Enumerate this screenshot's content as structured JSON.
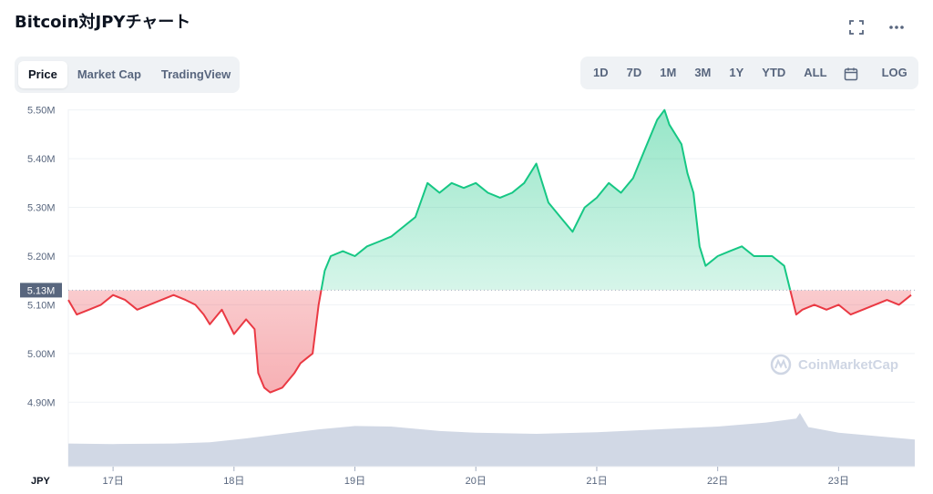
{
  "page": {
    "title": "Bitcoin対JPYチャート",
    "icons": [
      "fullscreen-icon",
      "more-icon"
    ]
  },
  "view_tabs": [
    {
      "label": "Price",
      "active": true
    },
    {
      "label": "Market Cap",
      "active": false
    },
    {
      "label": "TradingView",
      "active": false
    }
  ],
  "range_tabs": [
    "1D",
    "7D",
    "1M",
    "3M",
    "1Y",
    "YTD",
    "ALL"
  ],
  "log_label": "LOG",
  "watermark": "CoinMarketCap",
  "colors": {
    "up": "#16c784",
    "down": "#ea3943",
    "volume": "#cfd6e4",
    "grid": "#eff2f5",
    "text": "#58667e"
  },
  "chart_data": {
    "type": "line",
    "currency_label": "JPY",
    "ylim": [
      4.85,
      5.52
    ],
    "y_ticks": [
      "5.50M",
      "5.40M",
      "5.30M",
      "5.20M",
      "5.10M",
      "5.00M",
      "4.90M"
    ],
    "y_tick_values": [
      5.5,
      5.4,
      5.3,
      5.2,
      5.1,
      5.0,
      4.9
    ],
    "x_ticks": [
      "17日",
      "18日",
      "19日",
      "20日",
      "21日",
      "22日",
      "23日"
    ],
    "x_tick_values": [
      17,
      18,
      19,
      20,
      21,
      22,
      23
    ],
    "xlim": [
      16.63,
      23.63
    ],
    "baseline": {
      "value": 5.13,
      "label": "5.13M"
    },
    "price_series": {
      "name": "",
      "x": [
        16.63,
        16.7,
        16.8,
        16.9,
        17.0,
        17.1,
        17.2,
        17.3,
        17.4,
        17.5,
        17.6,
        17.68,
        17.75,
        17.8,
        17.9,
        18.0,
        18.1,
        18.17,
        18.2,
        18.25,
        18.3,
        18.4,
        18.5,
        18.55,
        18.6,
        18.65,
        18.7,
        18.75,
        18.8,
        18.9,
        19.0,
        19.1,
        19.2,
        19.3,
        19.4,
        19.5,
        19.6,
        19.7,
        19.8,
        19.9,
        20.0,
        20.1,
        20.2,
        20.3,
        20.4,
        20.5,
        20.55,
        20.6,
        20.7,
        20.8,
        20.9,
        21.0,
        21.1,
        21.2,
        21.3,
        21.4,
        21.5,
        21.56,
        21.6,
        21.7,
        21.75,
        21.8,
        21.85,
        21.9,
        22.0,
        22.1,
        22.2,
        22.3,
        22.45,
        22.55,
        22.6,
        22.65,
        22.7,
        22.8,
        22.9,
        23.0,
        23.1,
        23.2,
        23.3,
        23.4,
        23.5,
        23.6
      ],
      "y": [
        5.11,
        5.08,
        5.09,
        5.1,
        5.12,
        5.11,
        5.09,
        5.1,
        5.11,
        5.12,
        5.11,
        5.1,
        5.08,
        5.06,
        5.09,
        5.04,
        5.07,
        5.05,
        4.96,
        4.93,
        4.92,
        4.93,
        4.96,
        4.98,
        4.99,
        5.0,
        5.1,
        5.17,
        5.2,
        5.21,
        5.2,
        5.22,
        5.23,
        5.24,
        5.26,
        5.28,
        5.35,
        5.33,
        5.35,
        5.34,
        5.35,
        5.33,
        5.32,
        5.33,
        5.35,
        5.39,
        5.35,
        5.31,
        5.28,
        5.25,
        5.3,
        5.32,
        5.35,
        5.33,
        5.36,
        5.42,
        5.48,
        5.5,
        5.47,
        5.43,
        5.37,
        5.33,
        5.22,
        5.18,
        5.2,
        5.21,
        5.22,
        5.2,
        5.2,
        5.18,
        5.13,
        5.08,
        5.09,
        5.1,
        5.09,
        5.1,
        5.08,
        5.09,
        5.1,
        5.11,
        5.1,
        5.12
      ]
    },
    "volume_series": {
      "name": "",
      "x": [
        16.63,
        17.0,
        17.5,
        17.8,
        18.1,
        18.4,
        18.7,
        19.0,
        19.3,
        19.7,
        20.0,
        20.5,
        21.0,
        21.5,
        22.0,
        22.4,
        22.65,
        22.68,
        22.75,
        23.0,
        23.63
      ],
      "y": [
        0.41,
        0.4,
        0.41,
        0.43,
        0.5,
        0.58,
        0.66,
        0.72,
        0.71,
        0.63,
        0.6,
        0.58,
        0.61,
        0.66,
        0.71,
        0.78,
        0.85,
        0.95,
        0.7,
        0.6,
        0.48
      ]
    }
  }
}
